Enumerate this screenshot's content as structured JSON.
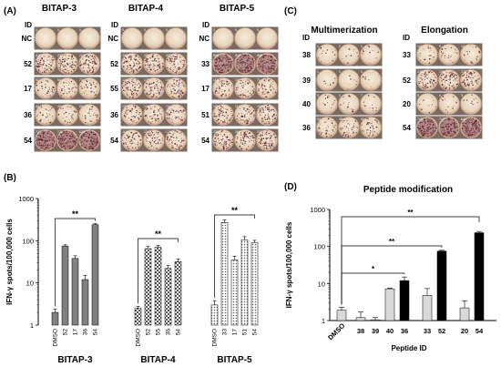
{
  "panel_labels": {
    "a": "(A)",
    "b": "(B)",
    "c": "(C)",
    "d": "(D)"
  },
  "panelA": {
    "id_header": "ID",
    "groups": [
      {
        "title": "BITAP-3",
        "ids": [
          "NC",
          "52",
          "17",
          "36",
          "54"
        ],
        "counts": [
          [
            "0",
            "0",
            "0"
          ],
          [
            "228",
            "231",
            "224"
          ],
          [
            "51",
            "56",
            "73"
          ],
          [
            "40",
            "45",
            "55"
          ],
          [
            "723",
            "721",
            "632"
          ]
        ]
      },
      {
        "title": "BITAP-4",
        "ids": [
          "NC",
          "52",
          "55",
          "36",
          "54"
        ],
        "counts": [
          [
            "0",
            "0",
            "0"
          ],
          [
            "292",
            "280",
            "305"
          ],
          [
            "124",
            "178",
            "166"
          ],
          [
            "102",
            "106",
            "74"
          ],
          [
            "119",
            "134",
            "170"
          ]
        ]
      },
      {
        "title": "BITAP-5",
        "ids": [
          "NC",
          "33",
          "17",
          "51",
          "54"
        ],
        "counts": [
          [
            "2",
            "0",
            "0"
          ],
          [
            "553",
            "518",
            "606"
          ],
          [
            "118",
            "106",
            "71"
          ],
          [
            "181",
            "113",
            "158"
          ],
          [
            "238",
            "265",
            "237"
          ]
        ]
      }
    ],
    "intensity": [
      [
        0,
        0.6,
        0.25,
        0.2,
        0.95
      ],
      [
        0,
        0.55,
        0.5,
        0.35,
        0.4
      ],
      [
        0,
        0.85,
        0.35,
        0.5,
        0.6
      ]
    ]
  },
  "panelC": {
    "id_header": "ID",
    "groups": [
      {
        "title": "Multimerization",
        "ids": [
          "38",
          "39",
          "40",
          "36"
        ],
        "counts": [
          [
            "1",
            "2",
            "0"
          ],
          [
            "1",
            "0",
            "0"
          ],
          [
            "4",
            "2",
            "7"
          ],
          [
            "40",
            "38",
            "42"
          ]
        ]
      },
      {
        "title": "Elongation",
        "ids": [
          "33",
          "52",
          "20",
          "54"
        ],
        "counts": [
          [
            "10",
            "9",
            "14"
          ],
          [
            "228",
            "238",
            "271"
          ],
          [
            "8",
            "6",
            "3"
          ],
          [
            "723",
            "712",
            "641"
          ]
        ]
      }
    ],
    "intensity": [
      [
        0.08,
        0.05,
        0.1,
        0.3
      ],
      [
        0.15,
        0.55,
        0.08,
        0.95
      ]
    ]
  },
  "chart_data": [
    {
      "type": "bar",
      "panel": "(B)",
      "ylabel": "IFN-γ spots/100,000 cells",
      "yscale": "log",
      "ylim": [
        1,
        1000
      ],
      "yticks": [
        "1",
        "10",
        "100",
        "1000"
      ],
      "groups": [
        {
          "name": "BITAP-3",
          "pattern": "solid-gray",
          "categories": [
            "DMSO",
            "52",
            "17",
            "36",
            "54"
          ],
          "values": [
            2,
            75,
            38,
            12,
            240
          ],
          "errors": [
            0.4,
            5,
            6,
            3,
            15
          ]
        },
        {
          "name": "BITAP-4",
          "pattern": "checker",
          "categories": [
            "DMSO",
            "52",
            "55",
            "36",
            "54"
          ],
          "values": [
            2.5,
            65,
            70,
            22,
            32
          ],
          "errors": [
            0.3,
            8,
            8,
            4,
            5
          ]
        },
        {
          "name": "BITAP-5",
          "pattern": "dots",
          "categories": [
            "DMSO",
            "33",
            "17",
            "51",
            "54"
          ],
          "values": [
            3,
            270,
            35,
            105,
            90
          ],
          "errors": [
            0.8,
            40,
            8,
            20,
            12
          ]
        }
      ],
      "significance": [
        "**",
        "**",
        "**"
      ]
    },
    {
      "type": "bar",
      "panel": "(D)",
      "title": "Peptide modification",
      "xlabel": "Peptide ID",
      "ylabel": "IFN-γ spots/100,000 cells",
      "yscale": "log",
      "ylim": [
        1,
        1000
      ],
      "yticks": [
        "1",
        "10",
        "100",
        "1000"
      ],
      "categories": [
        "DMSO",
        "38",
        "39",
        "40",
        "36",
        "33",
        "52",
        "20",
        "54"
      ],
      "values": [
        1.9,
        1.2,
        1.05,
        7.2,
        12,
        4.8,
        75,
        2.2,
        235
      ],
      "errors": [
        0.4,
        0.5,
        0.15,
        0.3,
        3,
        2.5,
        4,
        1.2,
        20
      ],
      "colors": [
        "#d9d9d9",
        "#d9d9d9",
        "#d9d9d9",
        "#d9d9d9",
        "#000000",
        "#d9d9d9",
        "#000000",
        "#d9d9d9",
        "#000000"
      ],
      "significance": [
        "*",
        "**",
        "**"
      ]
    }
  ],
  "colors": {
    "well_edge": "#c9a58e",
    "well_fill": "#eadbc7",
    "spot": "#5a1f2c",
    "bar_gray": "#d9d9d9",
    "bar_dark": "#808080"
  }
}
